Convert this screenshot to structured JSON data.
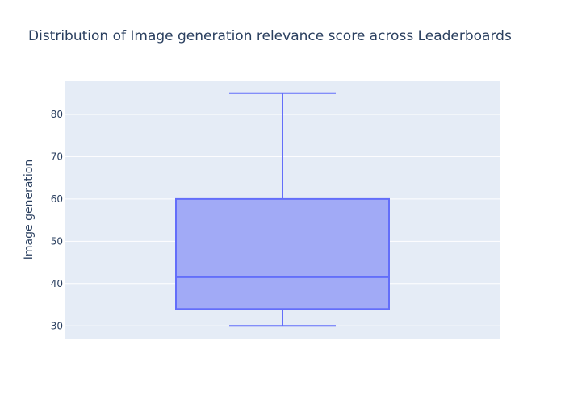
{
  "chart_data": {
    "type": "box",
    "title": "Distribution of Image generation relevance score across Leaderboards",
    "xlabel": "",
    "ylabel": "Image generation",
    "yticks": [
      30,
      40,
      50,
      60,
      70,
      80
    ],
    "ylim": [
      27,
      88
    ],
    "grid": true,
    "series": [
      {
        "min": 30,
        "q1": 34,
        "median": 41.5,
        "q3": 60,
        "max": 85
      }
    ],
    "colors": {
      "plot_bg": "#e5ecf6",
      "grid": "#ffffff",
      "box_fill": "#a1aaf6",
      "box_line": "#636efa",
      "text": "#2a3f5f"
    }
  }
}
